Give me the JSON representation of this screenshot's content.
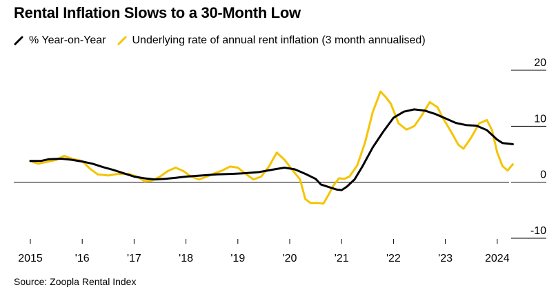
{
  "chart_data": {
    "type": "line",
    "title": "Rental Inflation Slows to a 30-Month Low",
    "source": "Source: Zoopla Rental Index",
    "ylim": [
      -10,
      20
    ],
    "yticks": [
      20,
      10,
      0,
      -10
    ],
    "xlim": [
      2015,
      2024.6
    ],
    "xticks": [
      {
        "value": 2015,
        "label": "2015"
      },
      {
        "value": 2016,
        "label": "'16"
      },
      {
        "value": 2017,
        "label": "'17"
      },
      {
        "value": 2018,
        "label": "'18"
      },
      {
        "value": 2019,
        "label": "'19"
      },
      {
        "value": 2020,
        "label": "'20"
      },
      {
        "value": 2021,
        "label": "'21"
      },
      {
        "value": 2022,
        "label": "'22"
      },
      {
        "value": 2023,
        "label": "'23"
      },
      {
        "value": 2024,
        "label": "2024"
      }
    ],
    "grid": false,
    "legend_position": "top-left",
    "series": [
      {
        "name": "% Year-on-Year",
        "color": "#000000",
        "points": [
          [
            2015.0,
            3.8
          ],
          [
            2015.2,
            3.8
          ],
          [
            2015.35,
            4.1
          ],
          [
            2015.6,
            4.2
          ],
          [
            2015.8,
            4.0
          ],
          [
            2016.0,
            3.7
          ],
          [
            2016.2,
            3.3
          ],
          [
            2016.4,
            2.7
          ],
          [
            2016.6,
            2.2
          ],
          [
            2016.8,
            1.6
          ],
          [
            2017.0,
            1.0
          ],
          [
            2017.2,
            0.7
          ],
          [
            2017.4,
            0.5
          ],
          [
            2017.6,
            0.6
          ],
          [
            2017.8,
            0.8
          ],
          [
            2018.0,
            1.0
          ],
          [
            2018.3,
            1.2
          ],
          [
            2018.6,
            1.4
          ],
          [
            2018.9,
            1.5
          ],
          [
            2019.1,
            1.6
          ],
          [
            2019.4,
            1.8
          ],
          [
            2019.7,
            2.3
          ],
          [
            2019.9,
            2.6
          ],
          [
            2020.1,
            2.3
          ],
          [
            2020.3,
            1.5
          ],
          [
            2020.5,
            0.6
          ],
          [
            2020.6,
            -0.4
          ],
          [
            2020.8,
            -1.0
          ],
          [
            2020.9,
            -1.3
          ],
          [
            2021.0,
            -1.4
          ],
          [
            2021.1,
            -0.8
          ],
          [
            2021.25,
            0.5
          ],
          [
            2021.4,
            2.8
          ],
          [
            2021.6,
            6.2
          ],
          [
            2021.8,
            9.0
          ],
          [
            2022.0,
            11.5
          ],
          [
            2022.2,
            12.6
          ],
          [
            2022.4,
            13.0
          ],
          [
            2022.6,
            12.8
          ],
          [
            2022.8,
            12.2
          ],
          [
            2023.0,
            11.4
          ],
          [
            2023.2,
            10.6
          ],
          [
            2023.4,
            10.2
          ],
          [
            2023.6,
            10.1
          ],
          [
            2023.8,
            9.3
          ],
          [
            2024.0,
            7.6
          ],
          [
            2024.1,
            7.0
          ],
          [
            2024.3,
            6.8
          ]
        ]
      },
      {
        "name": "Underlying rate of annual rent inflation (3 month annualised)",
        "color": "#f5c400",
        "points": [
          [
            2015.0,
            3.8
          ],
          [
            2015.15,
            3.3
          ],
          [
            2015.3,
            3.6
          ],
          [
            2015.5,
            4.0
          ],
          [
            2015.65,
            4.7
          ],
          [
            2015.8,
            4.2
          ],
          [
            2016.0,
            3.8
          ],
          [
            2016.15,
            2.4
          ],
          [
            2016.3,
            1.4
          ],
          [
            2016.5,
            1.2
          ],
          [
            2016.7,
            1.5
          ],
          [
            2016.9,
            1.5
          ],
          [
            2017.05,
            1.0
          ],
          [
            2017.2,
            0.2
          ],
          [
            2017.35,
            0.3
          ],
          [
            2017.5,
            1.0
          ],
          [
            2017.65,
            2.0
          ],
          [
            2017.8,
            2.6
          ],
          [
            2017.95,
            2.0
          ],
          [
            2018.1,
            1.0
          ],
          [
            2018.25,
            0.5
          ],
          [
            2018.4,
            1.0
          ],
          [
            2018.55,
            1.6
          ],
          [
            2018.7,
            2.1
          ],
          [
            2018.85,
            2.8
          ],
          [
            2019.0,
            2.6
          ],
          [
            2019.15,
            1.5
          ],
          [
            2019.3,
            0.5
          ],
          [
            2019.45,
            1.0
          ],
          [
            2019.6,
            2.8
          ],
          [
            2019.75,
            5.3
          ],
          [
            2019.9,
            4.0
          ],
          [
            2020.05,
            2.2
          ],
          [
            2020.2,
            0.5
          ],
          [
            2020.3,
            -3.0
          ],
          [
            2020.4,
            -3.7
          ],
          [
            2020.55,
            -3.7
          ],
          [
            2020.65,
            -3.8
          ],
          [
            2020.75,
            -2.2
          ],
          [
            2020.85,
            -0.5
          ],
          [
            2020.95,
            0.7
          ],
          [
            2021.05,
            0.6
          ],
          [
            2021.15,
            1.0
          ],
          [
            2021.3,
            3.0
          ],
          [
            2021.45,
            7.0
          ],
          [
            2021.6,
            12.5
          ],
          [
            2021.75,
            16.2
          ],
          [
            2021.85,
            15.2
          ],
          [
            2021.95,
            14.0
          ],
          [
            2022.1,
            10.5
          ],
          [
            2022.25,
            9.4
          ],
          [
            2022.4,
            10.0
          ],
          [
            2022.55,
            12.0
          ],
          [
            2022.7,
            14.3
          ],
          [
            2022.85,
            13.4
          ],
          [
            2022.95,
            11.5
          ],
          [
            2023.1,
            9.2
          ],
          [
            2023.25,
            6.7
          ],
          [
            2023.35,
            6.0
          ],
          [
            2023.5,
            8.0
          ],
          [
            2023.65,
            10.5
          ],
          [
            2023.8,
            11.1
          ],
          [
            2023.9,
            9.3
          ],
          [
            2024.0,
            5.3
          ],
          [
            2024.1,
            2.9
          ],
          [
            2024.2,
            2.1
          ],
          [
            2024.3,
            3.2
          ]
        ]
      }
    ]
  }
}
